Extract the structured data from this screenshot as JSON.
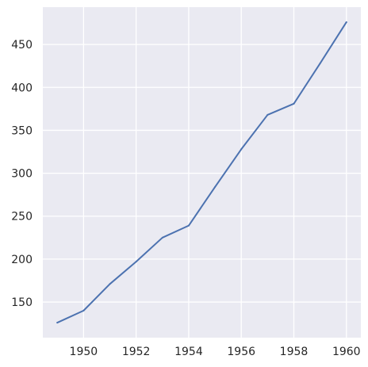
{
  "chart_data": {
    "type": "line",
    "title": "",
    "xlabel": "",
    "ylabel": "",
    "x": [
      1949,
      1950,
      1951,
      1952,
      1953,
      1954,
      1955,
      1956,
      1957,
      1958,
      1959,
      1960
    ],
    "series": [
      {
        "values": [
          126,
          140,
          171,
          197,
          225,
          239,
          284,
          328,
          368,
          381,
          428,
          476
        ]
      }
    ],
    "xlim": [
      1948.45,
      1960.55
    ],
    "ylim": [
      108.5,
      493.5
    ],
    "xticks": [
      1950,
      1952,
      1954,
      1956,
      1958,
      1960
    ],
    "yticks": [
      150,
      200,
      250,
      300,
      350,
      400,
      450
    ],
    "grid": true,
    "colors": {
      "background": "#eaeaf2",
      "grid": "#ffffff",
      "line": "#4c72b0"
    }
  }
}
